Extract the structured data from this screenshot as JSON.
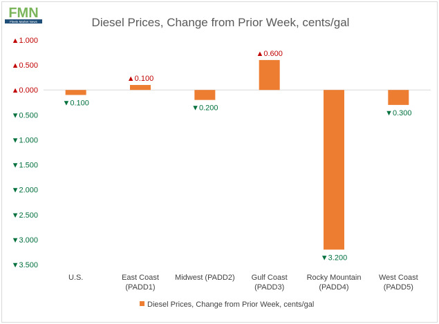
{
  "logo": {
    "letters": "FMN",
    "tagline": "Fleets Market News"
  },
  "chart_data": {
    "type": "bar",
    "title": "Diesel Prices, Change from Prior Week, cents/gal",
    "categories": [
      [
        "U.S."
      ],
      [
        "East Coast",
        "(PADD1)"
      ],
      [
        "Midwest (PADD2)"
      ],
      [
        "Gulf Coast",
        "(PADD3)"
      ],
      [
        "Rocky Mountain",
        "(PADD4)"
      ],
      [
        "West Coast",
        "(PADD5)"
      ]
    ],
    "series": [
      {
        "name": "Diesel Prices, Change from Prior Week, cents/gal",
        "values": [
          -0.1,
          0.1,
          -0.2,
          0.6,
          -3.2,
          -0.3
        ],
        "color": "#ed7d31"
      }
    ],
    "data_labels": [
      "▼0.100",
      "▲0.100",
      "▼0.200",
      "▲0.600",
      "▼3.200",
      "▼0.300"
    ],
    "yticks": [
      {
        "value": 1.0,
        "label": "▲1.000"
      },
      {
        "value": 0.5,
        "label": "▲0.500"
      },
      {
        "value": 0.0,
        "label": "▲0.000"
      },
      {
        "value": -0.5,
        "label": "▼0.500"
      },
      {
        "value": -1.0,
        "label": "▼1.000"
      },
      {
        "value": -1.5,
        "label": "▼1.500"
      },
      {
        "value": -2.0,
        "label": "▼2.000"
      },
      {
        "value": -2.5,
        "label": "▼2.500"
      },
      {
        "value": -3.0,
        "label": "▼3.000"
      },
      {
        "value": -3.5,
        "label": "▼3.500"
      }
    ],
    "ylim": [
      -3.5,
      1.0
    ],
    "grid": false,
    "legend": "bottom",
    "up_color": "#c00000",
    "down_color": "#00703c",
    "axis_color": "#d9d9d9"
  }
}
